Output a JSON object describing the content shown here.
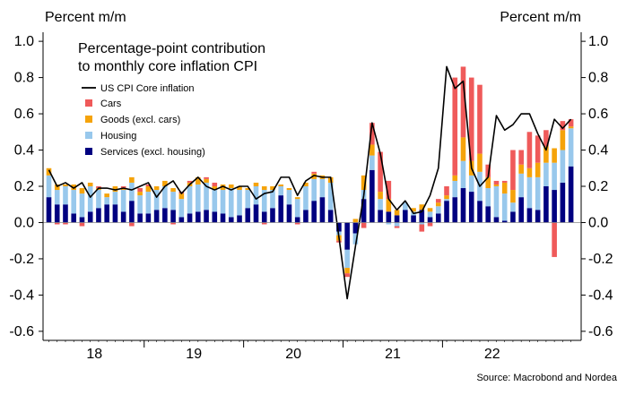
{
  "chart_data": {
    "type": "bar",
    "title": "Percentage-point contribution to monthly core inflation CPI",
    "title_lines": [
      "Percentage-point contribution",
      "to monthly core inflation CPI"
    ],
    "ylabel_left": "Percent m/m",
    "ylabel_right": "Percent m/m",
    "source": "Source: Macrobond and Nordea",
    "ylim": [
      -0.65,
      1.05
    ],
    "yticks": [
      -0.6,
      -0.4,
      -0.2,
      0.0,
      0.2,
      0.4,
      0.6,
      0.8,
      1.0
    ],
    "ytick_labels": [
      "-0.6",
      "-0.4",
      "-0.2",
      "0.0",
      "0.2",
      "0.4",
      "0.6",
      "0.8",
      "1.0"
    ],
    "year_labels": [
      "18",
      "19",
      "20",
      "21",
      "22"
    ],
    "grid": false,
    "legend_position": "top-left",
    "start_month": "2018-01",
    "series": [
      {
        "name": "Services (excl. housing)",
        "color": "#000080",
        "values": [
          0.14,
          0.1,
          0.1,
          0.05,
          0.03,
          0.06,
          0.08,
          0.1,
          0.1,
          0.06,
          0.12,
          0.05,
          0.05,
          0.07,
          0.08,
          0.07,
          0.03,
          0.05,
          0.06,
          0.07,
          0.06,
          0.05,
          0.03,
          0.04,
          0.08,
          0.1,
          0.06,
          0.08,
          0.15,
          0.1,
          0.03,
          0.07,
          0.12,
          0.14,
          0.07,
          -0.05,
          -0.15,
          -0.06,
          0.13,
          0.29,
          0.07,
          0.06,
          0.04,
          0.07,
          0.04,
          0.07,
          0.03,
          0.05,
          0.12,
          0.14,
          0.19,
          0.17,
          0.12,
          0.09,
          0.03,
          0.01,
          0.06,
          0.14,
          0.08,
          0.07,
          0.2,
          0.18,
          0.22,
          0.31
        ]
      },
      {
        "name": "Housing",
        "color": "#98c8ec",
        "values": [
          0.12,
          0.08,
          0.1,
          0.13,
          0.13,
          0.14,
          0.1,
          0.04,
          0.07,
          0.12,
          0.1,
          0.1,
          0.12,
          0.11,
          0.12,
          0.1,
          0.1,
          0.15,
          0.15,
          0.15,
          0.12,
          0.13,
          0.16,
          0.14,
          0.1,
          0.1,
          0.12,
          0.1,
          0.05,
          0.08,
          0.1,
          0.13,
          0.12,
          0.1,
          0.15,
          -0.02,
          -0.1,
          -0.06,
          0.05,
          0.08,
          0.06,
          -0.01,
          -0.02,
          0.04,
          0.02,
          -0.01,
          0.03,
          0.04,
          0.01,
          0.09,
          0.15,
          0.09,
          0.16,
          0.1,
          0.17,
          0.15,
          0.05,
          0.13,
          0.17,
          0.18,
          0.13,
          0.15,
          0.18,
          0.21
        ]
      },
      {
        "name": "Goods (excl. cars)",
        "color": "#f5a30a",
        "values": [
          0.04,
          0.03,
          0.01,
          0.03,
          0.03,
          0.02,
          0.01,
          0.02,
          0.03,
          0.01,
          0.03,
          0.02,
          0.03,
          0.02,
          0.03,
          0.02,
          0.03,
          0.02,
          0.04,
          0.02,
          0.02,
          0.03,
          0.02,
          0.02,
          0.01,
          0.02,
          0.02,
          0.02,
          0.01,
          0.01,
          0.01,
          0.02,
          0.03,
          0.02,
          0.03,
          -0.03,
          -0.03,
          0.02,
          0.08,
          0.06,
          0.04,
          0.07,
          0.03,
          0.0,
          0.02,
          0.03,
          0.02,
          0.02,
          0.02,
          0.03,
          0.13,
          0.08,
          0.1,
          0.06,
          0.01,
          0.06,
          0.07,
          0.05,
          0.05,
          0.08,
          0.09,
          0.08,
          0.11,
          0.01
        ]
      },
      {
        "name": "Cars",
        "color": "#ef5a5a",
        "values": [
          0.0,
          -0.01,
          -0.01,
          0.0,
          -0.02,
          0.0,
          0.01,
          0.0,
          0.0,
          0.01,
          -0.02,
          0.02,
          0.01,
          0.0,
          0.0,
          -0.01,
          0.01,
          0.01,
          0.0,
          0.01,
          0.02,
          0.0,
          0.0,
          0.0,
          0.0,
          0.0,
          -0.01,
          0.0,
          0.0,
          0.0,
          -0.01,
          0.0,
          0.01,
          0.0,
          0.0,
          -0.01,
          -0.02,
          0.0,
          -0.03,
          0.12,
          0.22,
          0.1,
          -0.01,
          0.0,
          0.0,
          -0.04,
          -0.02,
          0.02,
          0.05,
          0.54,
          0.39,
          0.46,
          0.38,
          0.07,
          0.02,
          0.01,
          0.22,
          0.08,
          0.2,
          0.15,
          0.09,
          -0.19,
          0.05,
          0.04
        ]
      }
    ],
    "core_inflation": {
      "name": "US CPI Core inflation",
      "color": "#000000",
      "values": [
        0.29,
        0.2,
        0.22,
        0.19,
        0.22,
        0.14,
        0.19,
        0.19,
        0.18,
        0.19,
        0.18,
        0.2,
        0.22,
        0.14,
        0.2,
        0.23,
        0.16,
        0.21,
        0.25,
        0.2,
        0.18,
        0.2,
        0.18,
        0.2,
        0.2,
        0.13,
        0.16,
        0.17,
        0.25,
        0.25,
        0.15,
        0.23,
        0.26,
        0.25,
        0.25,
        -0.08,
        -0.42,
        -0.13,
        0.15,
        0.55,
        0.38,
        0.13,
        0.07,
        0.12,
        0.05,
        0.06,
        0.15,
        0.3,
        0.86,
        0.74,
        0.78,
        0.3,
        0.2,
        0.25,
        0.59,
        0.51,
        0.54,
        0.6,
        0.6,
        0.49,
        0.4,
        0.57,
        0.52,
        0.57
      ]
    }
  }
}
